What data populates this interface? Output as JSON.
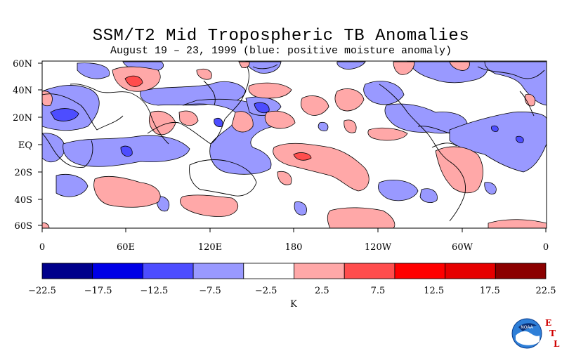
{
  "title": "SSM/T2 Mid Tropospheric TB Anomalies",
  "subtitle": "August 19 – 23, 1999 (blue: positive moisture anomaly)",
  "lat_labels": [
    "60N",
    "40N",
    "20N",
    "EQ",
    "20S",
    "40S",
    "60S"
  ],
  "lon_labels": [
    "0",
    "60E",
    "120E",
    "180",
    "120W",
    "60W",
    "0"
  ],
  "colorbar": {
    "unit": "K",
    "tick_labels": [
      "−22.5",
      "−17.5",
      "−12.5",
      "−7.5",
      "−2.5",
      "2.5",
      "7.5",
      "12.5",
      "17.5",
      "22.5"
    ],
    "colors": [
      "#00008b",
      "#0000e6",
      "#4d4dff",
      "#9999ff",
      "#ffffff",
      "#ffa8a8",
      "#ff4d4d",
      "#ff0000",
      "#e60000",
      "#8b0000"
    ]
  },
  "map_colors": {
    "positive_anomaly_light": "#9999ff",
    "positive_anomaly_mid": "#4d4dff",
    "negative_anomaly_light": "#ffa8a8",
    "negative_anomaly_mid": "#ff4d4d"
  },
  "logo": {
    "agency": "NOAA",
    "lab_letters": [
      "E",
      "T",
      "L"
    ]
  }
}
